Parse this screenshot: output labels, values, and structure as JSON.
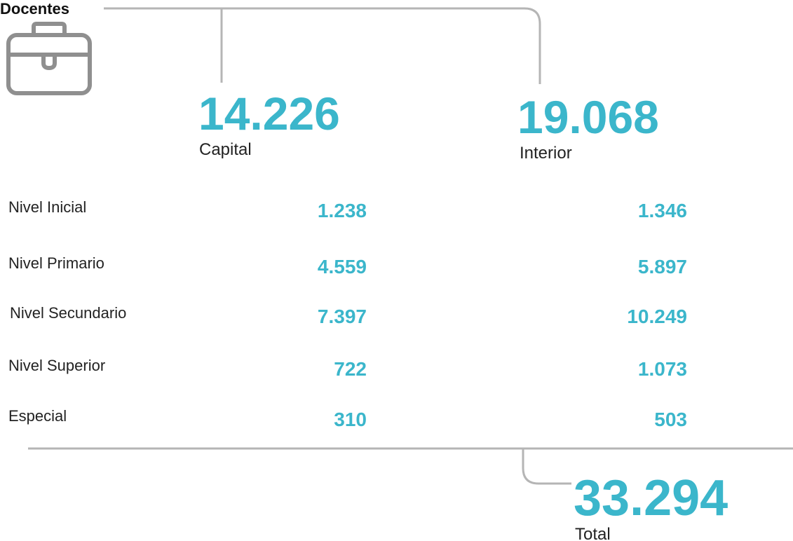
{
  "title": "Docentes",
  "regions": [
    {
      "total": "14.226",
      "label": "Capital"
    },
    {
      "total": "19.068",
      "label": "Interior"
    }
  ],
  "rows": [
    {
      "label": "Nivel Inicial",
      "values": [
        "1.238",
        "1.346"
      ]
    },
    {
      "label": "Nivel Primario",
      "values": [
        "4.559",
        "5.897"
      ]
    },
    {
      "label": "Nivel Secundario",
      "values": [
        "7.397",
        "10.249"
      ]
    },
    {
      "label": "Nivel Superior",
      "values": [
        "722",
        "1.073"
      ]
    },
    {
      "label": "Especial",
      "values": [
        "310",
        "503"
      ]
    }
  ],
  "total": {
    "value": "33.294",
    "label": "Total"
  }
}
